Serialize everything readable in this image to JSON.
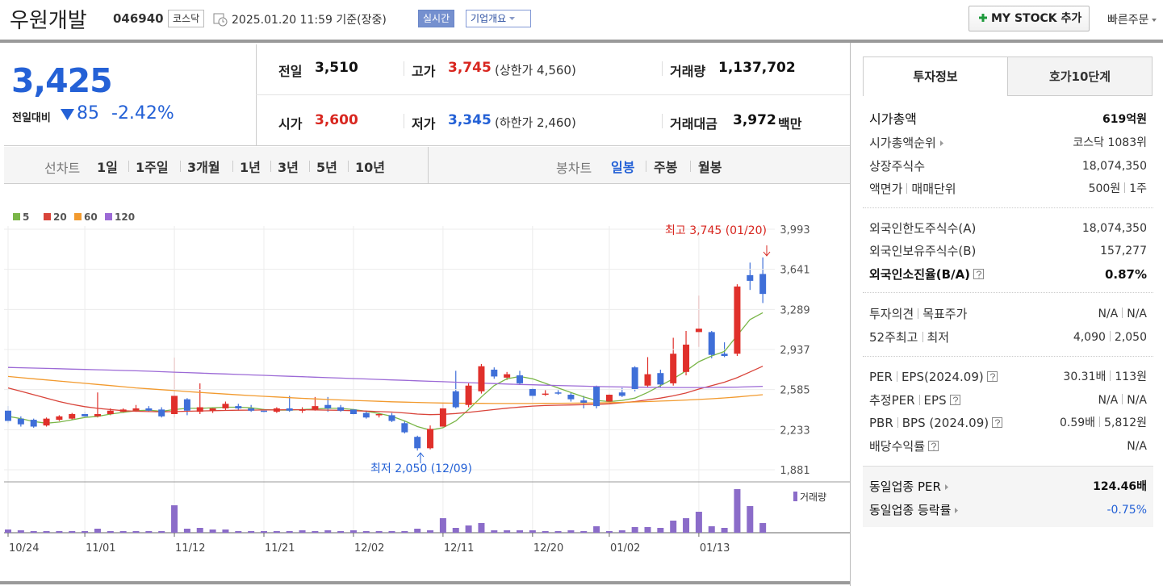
{
  "header": {
    "title": "우원개발",
    "code": "046940",
    "market": "코스닥",
    "datetime": "2025.01.20 11:59 기준(장중)",
    "realtime": "실시간",
    "overview": "기업개요",
    "mystock": "MY STOCK 추가",
    "quick_order": "빠른주문"
  },
  "price": {
    "current": "3,425",
    "change_label": "전일대비",
    "change": "85",
    "change_pct": "-2.42%"
  },
  "summary": {
    "rows": [
      [
        {
          "label": "전일",
          "value": "3,510"
        },
        {
          "label": "고가",
          "value": "3,745",
          "note": "(상한가 4,560)"
        },
        {
          "label": "거래량",
          "value": "1,137,702"
        }
      ],
      [
        {
          "label": "시가",
          "value": "3,600"
        },
        {
          "label": "저가",
          "value": "3,345",
          "note": "(하한가 2,460)"
        },
        {
          "label": "거래대금",
          "value": "3,972",
          "unit": "백만"
        }
      ]
    ]
  },
  "chart_tabs": {
    "line_label": "선차트",
    "line_periods": [
      "1일",
      "1주일",
      "3개월",
      "1년",
      "3년",
      "5년",
      "10년"
    ],
    "candle_label": "봉차트",
    "candle_periods": [
      "일봉",
      "주봉",
      "월봉"
    ]
  },
  "chart_data": {
    "type": "candlestick",
    "categories": [
      "10/24",
      null,
      null,
      null,
      null,
      null,
      "11/01",
      null,
      null,
      null,
      null,
      null,
      null,
      "11/12",
      null,
      null,
      null,
      null,
      null,
      null,
      "11/21",
      null,
      null,
      null,
      null,
      null,
      null,
      "12/02",
      null,
      null,
      null,
      null,
      null,
      null,
      "12/11",
      null,
      null,
      null,
      null,
      null,
      null,
      "12/20",
      null,
      null,
      null,
      null,
      null,
      "01/02",
      null,
      null,
      null,
      null,
      null,
      null,
      "01/13",
      null,
      null,
      null,
      null,
      null
    ],
    "open": [
      2400,
      2330,
      2320,
      2270,
      2320,
      2330,
      2370,
      2350,
      2370,
      2390,
      2400,
      2420,
      2410,
      2370,
      2500,
      2390,
      2400,
      2420,
      2440,
      2420,
      2400,
      2390,
      2420,
      2400,
      2410,
      2450,
      2430,
      2410,
      2380,
      2360,
      2360,
      2290,
      2170,
      2070,
      2260,
      2570,
      2450,
      2570,
      2760,
      2690,
      2710,
      2590,
      2540,
      2560,
      2540,
      2490,
      2610,
      2480,
      2560,
      2780,
      2620,
      2730,
      2640,
      2740,
      3090,
      3090,
      2900,
      2900,
      3590,
      3600
    ],
    "high": [
      2440,
      2350,
      2330,
      2340,
      2360,
      2380,
      2390,
      2560,
      2420,
      2420,
      2450,
      2440,
      2430,
      2866,
      2510,
      2640,
      2430,
      2480,
      2460,
      2450,
      2420,
      2430,
      2530,
      2430,
      2520,
      2520,
      2450,
      2420,
      2400,
      2380,
      2380,
      2310,
      2180,
      2270,
      2460,
      2750,
      2640,
      2810,
      2780,
      2740,
      2750,
      2600,
      2580,
      2580,
      2560,
      2530,
      2620,
      2550,
      2600,
      2790,
      2870,
      2760,
      3040,
      3100,
      3410,
      3100,
      3000,
      3510,
      3700,
      3745
    ],
    "low": [
      2290,
      2260,
      2250,
      2260,
      2310,
      2320,
      2340,
      2340,
      2360,
      2380,
      2390,
      2390,
      2340,
      2340,
      2360,
      2370,
      2380,
      2400,
      2400,
      2390,
      2380,
      2380,
      2390,
      2380,
      2400,
      2390,
      2390,
      2360,
      2330,
      2340,
      2300,
      2200,
      2050,
      2060,
      2250,
      2420,
      2430,
      2550,
      2680,
      2670,
      2630,
      2500,
      2530,
      2540,
      2480,
      2420,
      2420,
      2470,
      2520,
      2570,
      2600,
      2600,
      2620,
      2710,
      2960,
      2860,
      2870,
      2880,
      3460,
      3345
    ],
    "close": [
      2310,
      2280,
      2260,
      2330,
      2350,
      2370,
      2350,
      2370,
      2400,
      2410,
      2420,
      2400,
      2350,
      2530,
      2400,
      2430,
      2420,
      2460,
      2420,
      2400,
      2390,
      2420,
      2400,
      2410,
      2440,
      2420,
      2400,
      2370,
      2340,
      2370,
      2310,
      2210,
      2070,
      2240,
      2420,
      2430,
      2620,
      2790,
      2700,
      2720,
      2640,
      2530,
      2550,
      2550,
      2500,
      2470,
      2440,
      2540,
      2530,
      2590,
      2720,
      2630,
      2900,
      2980,
      3120,
      2890,
      2880,
      3490,
      3540,
      3425
    ],
    "volume": [
      380000,
      285000,
      190000,
      190000,
      190000,
      190000,
      190000,
      475000,
      190000,
      190000,
      190000,
      190000,
      190000,
      3230000,
      475000,
      570000,
      380000,
      380000,
      190000,
      190000,
      190000,
      190000,
      190000,
      285000,
      190000,
      285000,
      190000,
      285000,
      190000,
      190000,
      190000,
      190000,
      475000,
      285000,
      1710000,
      570000,
      855000,
      1140000,
      285000,
      285000,
      285000,
      285000,
      190000,
      190000,
      285000,
      190000,
      760000,
      190000,
      285000,
      665000,
      665000,
      570000,
      1425000,
      1710000,
      2470000,
      760000,
      570000,
      5130000,
      3135000,
      1137702
    ],
    "series": [
      {
        "name": "5",
        "color": "#7ab648",
        "values": [
          2350,
          2330,
          2305,
          2290,
          2300,
          2320,
          2340,
          2350,
          2370,
          2385,
          2400,
          2405,
          2395,
          2410,
          2420,
          2420,
          2425,
          2430,
          2430,
          2425,
          2410,
          2405,
          2405,
          2410,
          2415,
          2420,
          2420,
          2410,
          2395,
          2375,
          2350,
          2310,
          2260,
          2230,
          2250,
          2310,
          2410,
          2520,
          2620,
          2680,
          2700,
          2680,
          2640,
          2600,
          2560,
          2520,
          2490,
          2480,
          2490,
          2510,
          2560,
          2620,
          2680,
          2750,
          2830,
          2880,
          2920,
          3060,
          3200,
          3260
        ]
      },
      {
        "name": "20",
        "color": "#d9443a",
        "values": [
          2600,
          2570,
          2540,
          2510,
          2480,
          2455,
          2435,
          2420,
          2410,
          2400,
          2395,
          2392,
          2390,
          2392,
          2395,
          2398,
          2400,
          2402,
          2404,
          2405,
          2406,
          2407,
          2408,
          2408,
          2407,
          2405,
          2403,
          2400,
          2396,
          2392,
          2388,
          2380,
          2370,
          2365,
          2368,
          2375,
          2385,
          2398,
          2410,
          2422,
          2432,
          2440,
          2445,
          2448,
          2450,
          2452,
          2455,
          2460,
          2470,
          2480,
          2495,
          2510,
          2530,
          2555,
          2590,
          2620,
          2650,
          2690,
          2740,
          2790
        ]
      },
      {
        "name": "60",
        "color": "#f29a2e",
        "values": [
          2700,
          2690,
          2680,
          2670,
          2660,
          2650,
          2640,
          2630,
          2620,
          2610,
          2600,
          2592,
          2584,
          2576,
          2568,
          2560,
          2553,
          2546,
          2539,
          2532,
          2526,
          2520,
          2514,
          2508,
          2503,
          2498,
          2494,
          2490,
          2486,
          2482,
          2478,
          2475,
          2472,
          2469,
          2467,
          2466,
          2465,
          2464,
          2463,
          2463,
          2463,
          2463,
          2464,
          2465,
          2466,
          2467,
          2468,
          2470,
          2473,
          2476,
          2480,
          2484,
          2488,
          2493,
          2498,
          2505,
          2512,
          2520,
          2530,
          2540
        ]
      },
      {
        "name": "120",
        "color": "#9c6ad6",
        "values": [
          2780,
          2777,
          2774,
          2771,
          2768,
          2765,
          2762,
          2759,
          2756,
          2753,
          2750,
          2746,
          2742,
          2738,
          2734,
          2730,
          2726,
          2722,
          2718,
          2714,
          2710,
          2706,
          2702,
          2698,
          2694,
          2690,
          2686,
          2682,
          2678,
          2674,
          2670,
          2666,
          2662,
          2658,
          2654,
          2650,
          2646,
          2642,
          2638,
          2634,
          2630,
          2627,
          2624,
          2621,
          2618,
          2615,
          2612,
          2610,
          2608,
          2606,
          2605,
          2604,
          2603,
          2603,
          2603,
          2604,
          2605,
          2607,
          2610,
          2614
        ]
      }
    ],
    "up_color": "#e0302b",
    "down_color": "#3f6fd8",
    "volume_color": "#8b6cc9",
    "volume_label": "거래량",
    "ylim": [
      1881,
      3993
    ],
    "yticks": [
      {
        "value": 1881,
        "label": "1,881"
      },
      {
        "value": 2233,
        "label": "2,233"
      },
      {
        "value": 2585,
        "label": "2,585"
      },
      {
        "value": 2937,
        "label": "2,937"
      },
      {
        "value": 3289,
        "label": "3,289"
      },
      {
        "value": 3641,
        "label": "3,641"
      },
      {
        "value": 3993,
        "label": "3,993"
      }
    ],
    "grid": true,
    "annotations": {
      "high": "최고 3,745 (01/20)",
      "low": "최저 2,050 (12/09)"
    }
  },
  "invest": {
    "tabs": [
      "투자정보",
      "호가10단계"
    ],
    "groups": [
      {
        "rows": [
          {
            "label": [
              "시가총액"
            ],
            "value": [
              "619억원"
            ]
          },
          {
            "label": [
              "시가총액순위"
            ],
            "value": [
              "코스닥 1083위"
            ]
          },
          {
            "label": [
              "상장주식수"
            ],
            "value": [
              "18,074,350"
            ]
          },
          {
            "label": [
              "액면가",
              "매매단위"
            ],
            "value": [
              "500원",
              "1주"
            ]
          }
        ]
      },
      {
        "rows": [
          {
            "label": [
              "외국인한도주식수(A)"
            ],
            "value": [
              "18,074,350"
            ]
          },
          {
            "label": [
              "외국인보유주식수(B)"
            ],
            "value": [
              "157,277"
            ]
          },
          {
            "label": [
              "외국인소진율(B/A)"
            ],
            "value": [
              "0.87%"
            ]
          }
        ]
      },
      {
        "rows": [
          {
            "label": [
              "투자의견",
              "목표주가"
            ],
            "value": [
              "N/A",
              "N/A"
            ]
          },
          {
            "label": [
              "52주최고",
              "최저"
            ],
            "value": [
              "4,090",
              "2,050"
            ]
          }
        ]
      },
      {
        "rows": [
          {
            "label": [
              "PER",
              "EPS(2024.09)"
            ],
            "value": [
              "30.31배",
              "113원"
            ]
          },
          {
            "label": [
              "추정PER",
              "EPS"
            ],
            "value": [
              "N/A",
              "N/A"
            ]
          },
          {
            "label": [
              "PBR",
              "BPS (2024.09)"
            ],
            "value": [
              "0.59배",
              "5,812원"
            ]
          },
          {
            "label": [
              "배당수익률"
            ],
            "value": [
              "N/A"
            ]
          }
        ]
      },
      {
        "rows": [
          {
            "label": [
              "동일업종 PER"
            ],
            "value": [
              "124.46배"
            ]
          },
          {
            "label": [
              "동일업종 등락률"
            ],
            "value": [
              "-0.75%"
            ]
          }
        ]
      }
    ]
  }
}
